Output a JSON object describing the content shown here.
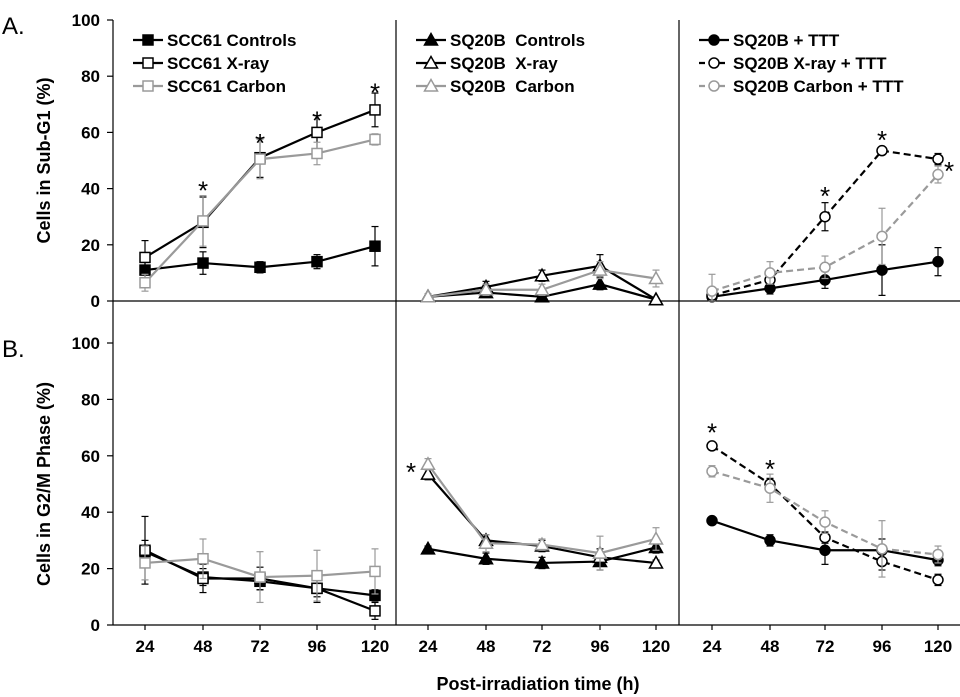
{
  "figure": {
    "panel_labels": [
      "A.",
      "B."
    ],
    "xlabel": "Post-irradiation time (h)",
    "x_ticks": [
      "24",
      "48",
      "72",
      "96",
      "120"
    ],
    "y_ticks": [
      "0",
      "20",
      "40",
      "60",
      "80",
      "100"
    ],
    "colors": {
      "black": "#000000",
      "gray": "#9a9a9a"
    }
  },
  "chart_data": [
    {
      "type": "line",
      "row": "A",
      "col": 1,
      "ylabel": "Cells in Sub-G1 (%)",
      "ylim": [
        0,
        100
      ],
      "x": [
        24,
        48,
        72,
        96,
        120
      ],
      "legend_placement": "top-left",
      "series": [
        {
          "name": "SCC61 Controls",
          "values": [
            11,
            13.5,
            12,
            14,
            19.5
          ],
          "errors": [
            3,
            4,
            2,
            2.5,
            7
          ],
          "marker": "square",
          "fill": "black",
          "color": "black",
          "dash": "solid"
        },
        {
          "name": "SCC61 X-ray",
          "values": [
            15.5,
            28,
            51,
            60,
            68
          ],
          "errors": [
            6,
            9,
            7,
            6,
            6
          ],
          "marker": "square",
          "fill": "white",
          "color": "black",
          "dash": "solid"
        },
        {
          "name": "SCC61 Carbon",
          "values": [
            6.5,
            28.5,
            50.5,
            52.5,
            57.5
          ],
          "errors": [
            3,
            9,
            7,
            4,
            2
          ],
          "marker": "square",
          "fill": "white",
          "color": "gray",
          "dash": "solid"
        }
      ],
      "annotations": [
        {
          "x": 48,
          "y": 40,
          "text": "*"
        },
        {
          "x": 72,
          "y": 57,
          "text": "*"
        },
        {
          "x": 96,
          "y": 65,
          "text": "*"
        },
        {
          "x": 120,
          "y": 75,
          "text": "*"
        }
      ]
    },
    {
      "type": "line",
      "row": "A",
      "col": 2,
      "ylim": [
        0,
        100
      ],
      "x": [
        24,
        48,
        72,
        96,
        120
      ],
      "legend_placement": "top-left",
      "series": [
        {
          "name": "SQ20B  Controls",
          "values": [
            1.5,
            3,
            1.5,
            6,
            0.5
          ],
          "errors": [
            0.5,
            1.5,
            1,
            2,
            0.5
          ],
          "marker": "triangle",
          "fill": "black",
          "color": "black",
          "dash": "solid"
        },
        {
          "name": "SQ20B  X-ray",
          "values": [
            1.5,
            5,
            9,
            12.5,
            0.5
          ],
          "errors": [
            1,
            2,
            2,
            4,
            0.5
          ],
          "marker": "triangle",
          "fill": "white",
          "color": "black",
          "dash": "solid"
        },
        {
          "name": "SQ20B  Carbon",
          "values": [
            1.5,
            4,
            4,
            11,
            8
          ],
          "errors": [
            1,
            2,
            2,
            3,
            3
          ],
          "marker": "triangle",
          "fill": "white",
          "color": "gray",
          "dash": "solid"
        }
      ]
    },
    {
      "type": "line",
      "row": "A",
      "col": 3,
      "ylim": [
        0,
        100
      ],
      "x": [
        24,
        48,
        72,
        96,
        120
      ],
      "legend_placement": "top-left",
      "series": [
        {
          "name": "SQ20B + TTT",
          "values": [
            1.5,
            4.5,
            7.5,
            11,
            14
          ],
          "errors": [
            1,
            2,
            3,
            9,
            5
          ],
          "marker": "circle",
          "fill": "black",
          "color": "black",
          "dash": "solid"
        },
        {
          "name": "SQ20B X-ray + TTT",
          "values": [
            2,
            7.5,
            30,
            53.5,
            50.5
          ],
          "errors": [
            1.5,
            2,
            5,
            1,
            2
          ],
          "marker": "circle",
          "fill": "white",
          "color": "black",
          "dash": "dashed"
        },
        {
          "name": "SQ20B Carbon + TTT",
          "values": [
            3.5,
            10,
            12,
            23,
            45
          ],
          "errors": [
            6,
            4,
            4,
            10,
            3
          ],
          "marker": "circle",
          "fill": "white",
          "color": "gray",
          "dash": "dashed"
        }
      ],
      "annotations": [
        {
          "x": 72,
          "y": 38,
          "text": "*"
        },
        {
          "x": 96,
          "y": 58,
          "text": "*"
        },
        {
          "x": 120,
          "y": 47,
          "text": "*",
          "side": "right"
        }
      ]
    },
    {
      "type": "line",
      "row": "B",
      "col": 1,
      "ylabel": "Cells in G2/M Phase (%)",
      "ylim": [
        0,
        100
      ],
      "x": [
        24,
        48,
        72,
        96,
        120
      ],
      "series": [
        {
          "values": [
            26,
            17,
            15.5,
            13,
            10.5
          ],
          "errors": [
            4,
            3,
            3,
            3,
            2
          ],
          "marker": "square",
          "fill": "black",
          "color": "black",
          "dash": "solid"
        },
        {
          "values": [
            26.5,
            16.5,
            16.5,
            13,
            5
          ],
          "errors": [
            12,
            5,
            4,
            5,
            3
          ],
          "marker": "square",
          "fill": "white",
          "color": "black",
          "dash": "solid"
        },
        {
          "values": [
            22,
            23.5,
            17,
            17.5,
            19
          ],
          "errors": [
            6,
            7,
            9,
            9,
            8
          ],
          "marker": "square",
          "fill": "white",
          "color": "gray",
          "dash": "solid"
        }
      ]
    },
    {
      "type": "line",
      "row": "B",
      "col": 2,
      "ylim": [
        0,
        100
      ],
      "x": [
        24,
        48,
        72,
        96,
        120
      ],
      "series": [
        {
          "values": [
            27,
            23.5,
            22,
            22.5,
            27.5
          ],
          "errors": [
            1,
            2,
            2,
            3,
            2
          ],
          "marker": "triangle",
          "fill": "black",
          "color": "black",
          "dash": "solid"
        },
        {
          "values": [
            53.5,
            30,
            28,
            24,
            22
          ],
          "errors": [
            2,
            2,
            2,
            3,
            1
          ],
          "marker": "triangle",
          "fill": "white",
          "color": "black",
          "dash": "solid"
        },
        {
          "values": [
            57,
            29,
            28.5,
            25.5,
            30.5
          ],
          "errors": [
            2,
            3,
            2,
            6,
            4
          ],
          "marker": "triangle",
          "fill": "white",
          "color": "gray",
          "dash": "solid"
        }
      ],
      "annotations": [
        {
          "x": 24,
          "y": 55,
          "text": "*",
          "side": "left"
        }
      ]
    },
    {
      "type": "line",
      "row": "B",
      "col": 3,
      "ylim": [
        0,
        100
      ],
      "x": [
        24,
        48,
        72,
        96,
        120
      ],
      "series": [
        {
          "values": [
            37,
            30,
            26.5,
            26.5,
            23
          ],
          "errors": [
            1,
            2,
            5,
            4,
            2
          ],
          "marker": "circle",
          "fill": "black",
          "color": "black",
          "dash": "solid"
        },
        {
          "values": [
            63.5,
            50,
            31,
            22.5,
            16
          ],
          "errors": [
            1,
            2,
            2,
            3,
            2
          ],
          "marker": "circle",
          "fill": "white",
          "color": "black",
          "dash": "dashed"
        },
        {
          "values": [
            54.5,
            48.5,
            36.5,
            27,
            25
          ],
          "errors": [
            2,
            5,
            4,
            10,
            3
          ],
          "marker": "circle",
          "fill": "white",
          "color": "gray",
          "dash": "dashed"
        }
      ],
      "annotations": [
        {
          "x": 24,
          "y": 69,
          "text": "*"
        },
        {
          "x": 48,
          "y": 56,
          "text": "*"
        }
      ]
    }
  ]
}
